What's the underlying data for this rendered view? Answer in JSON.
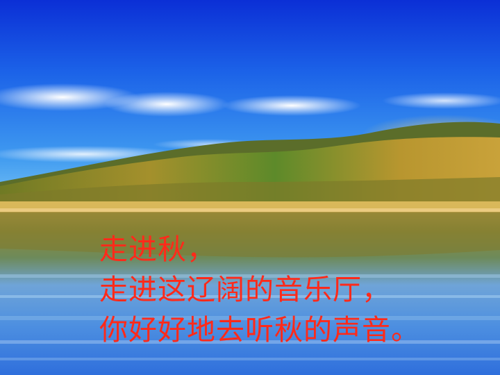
{
  "slide": {
    "caption_lines": [
      "走进秋，",
      "走进这辽阔的音乐厅，",
      "你好好地去听秋的声音。"
    ],
    "text_color": "#ff2a1a"
  }
}
